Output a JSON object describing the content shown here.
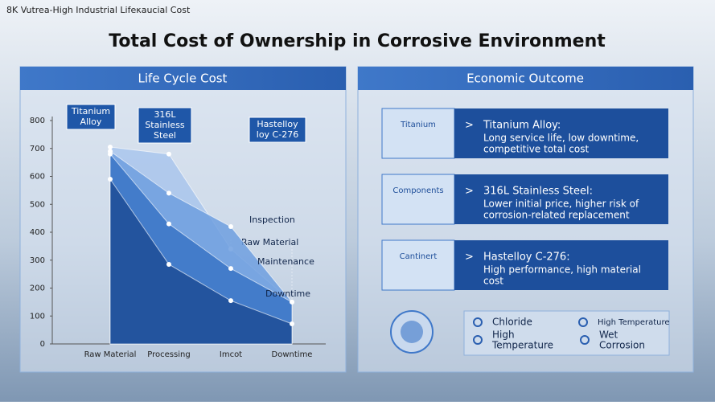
{
  "header": {
    "caption": "8K Vutrea-High Industrial Lifeκaucial Cost",
    "title": "Total Cost of Ownership in Corrosive Environment"
  },
  "chart_data": {
    "type": "area",
    "title": "Life Cycle Cost",
    "categories": [
      "Raw Material",
      "Processing",
      "Imcot",
      "Downtime"
    ],
    "series": [
      {
        "name": "Raw Material",
        "color": "#a9c6ec",
        "values": [
          705,
          680,
          340,
          150
        ]
      },
      {
        "name": "Inspection",
        "color": "#6f9fdf",
        "values": [
          690,
          540,
          420,
          150
        ]
      },
      {
        "name": "Maintenance",
        "color": "#3a74c6",
        "values": [
          680,
          430,
          270,
          150
        ]
      },
      {
        "name": "Downtime",
        "color": "#1d4d97",
        "values": [
          590,
          285,
          155,
          72
        ]
      }
    ],
    "ylim": [
      0,
      800
    ],
    "yticks": [
      0,
      100,
      200,
      300,
      400,
      500,
      600,
      700,
      800
    ],
    "callouts": [
      [
        "Titanium",
        "Alloy"
      ],
      [
        "316L",
        "Stainless",
        "Steel"
      ],
      [
        "Hastelloy",
        "loy C-276"
      ]
    ]
  },
  "outcome": {
    "title": "Economic Outcome",
    "items": [
      {
        "tag": "Titanium",
        "title": "Titanium Alloy:",
        "lines": [
          "Long service life, low downtime,",
          "competitive total cost"
        ]
      },
      {
        "tag": "Components",
        "title": "316L Stainless Steel:",
        "lines": [
          "Lower initial price, higher risk of",
          "corrosion-related replacement"
        ]
      },
      {
        "tag": "Cantinert",
        "title": "Hastelloy C-276:",
        "lines": [
          "High performance, high material",
          "cost"
        ]
      }
    ]
  },
  "legend": [
    [
      "Chloride"
    ],
    [
      "High",
      "Temperature"
    ],
    [
      "High Temperature"
    ],
    [
      "Wet",
      "Corrosion"
    ]
  ]
}
